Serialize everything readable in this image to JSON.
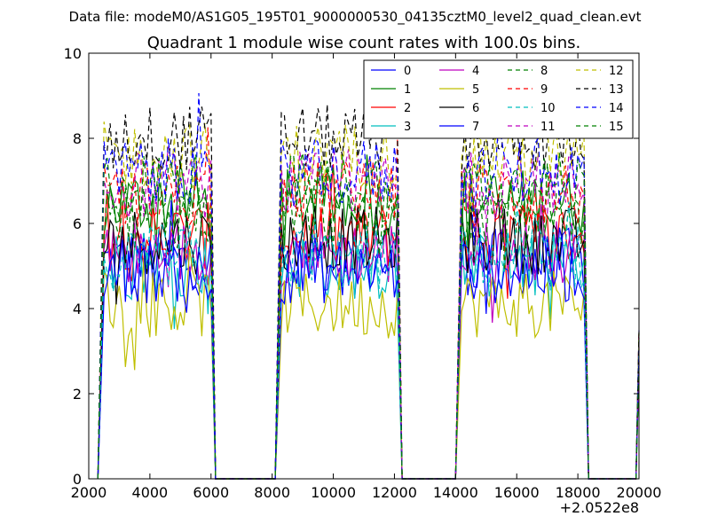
{
  "chart_data": {
    "type": "line",
    "suptitle": "Data file: modeM0/AS1G05_195T01_9000000530_04135cztM0_level2_quad_clean.evt",
    "title": "Quadrant 1 module wise count rates with 100.0s bins.",
    "xlabel": "",
    "ylabel": "",
    "xlim": [
      2000,
      20000
    ],
    "ylim": [
      0,
      10
    ],
    "x_offset_label": "+2.0522e8",
    "xticks": [
      2000,
      4000,
      6000,
      8000,
      10000,
      12000,
      14000,
      16000,
      18000,
      20000
    ],
    "yticks": [
      0,
      2,
      4,
      6,
      8,
      10
    ],
    "grid": false,
    "legend": {
      "placement": "top-right",
      "columns": 4
    },
    "segments": [
      [
        2500,
        6000
      ],
      [
        8300,
        12100
      ],
      [
        14200,
        18200
      ]
    ],
    "gaps": [
      [
        6200,
        8100
      ],
      [
        12250,
        14000
      ],
      [
        18400,
        19900
      ]
    ],
    "series": [
      {
        "name": "0",
        "color": "#0000ff",
        "dash": "solid",
        "mean_level": 5.1
      },
      {
        "name": "1",
        "color": "#008000",
        "dash": "solid",
        "mean_level": 6.5
      },
      {
        "name": "2",
        "color": "#ff0000",
        "dash": "solid",
        "mean_level": 5.7
      },
      {
        "name": "3",
        "color": "#00bfbf",
        "dash": "solid",
        "mean_level": 5.0
      },
      {
        "name": "4",
        "color": "#bf00bf",
        "dash": "solid",
        "mean_level": 5.3
      },
      {
        "name": "5",
        "color": "#bfbf00",
        "dash": "solid",
        "mean_level": 4.1
      },
      {
        "name": "6",
        "color": "#000000",
        "dash": "solid",
        "mean_level": 5.6
      },
      {
        "name": "7",
        "color": "#0000ff",
        "dash": "solid",
        "mean_level": 4.9
      },
      {
        "name": "8",
        "color": "#008000",
        "dash": "dashed",
        "mean_level": 6.2
      },
      {
        "name": "9",
        "color": "#ff0000",
        "dash": "dashed",
        "mean_level": 6.7
      },
      {
        "name": "10",
        "color": "#00bfbf",
        "dash": "dashed",
        "mean_level": 5.2
      },
      {
        "name": "11",
        "color": "#bf00bf",
        "dash": "dashed",
        "mean_level": 6.9
      },
      {
        "name": "12",
        "color": "#bfbf00",
        "dash": "dashed",
        "mean_level": 7.6
      },
      {
        "name": "13",
        "color": "#000000",
        "dash": "dashed",
        "mean_level": 8.0
      },
      {
        "name": "14",
        "color": "#0000ff",
        "dash": "dashed",
        "mean_level": 7.2
      },
      {
        "name": "15",
        "color": "#008000",
        "dash": "dashed",
        "mean_level": 6.9
      }
    ]
  }
}
